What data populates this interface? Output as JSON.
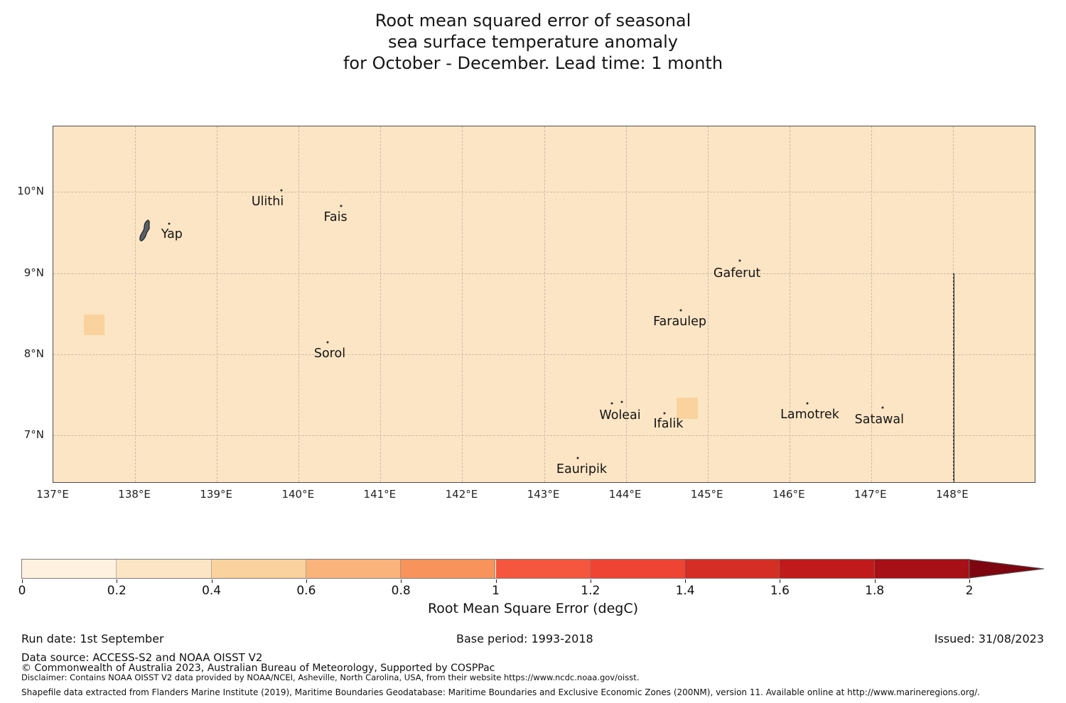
{
  "title": {
    "line1": "Root mean squared error of seasonal",
    "line2": "sea surface temperature anomaly",
    "line3": "for October - December. Lead time: 1 month"
  },
  "footer": {
    "run_date": "Run date: 1st September",
    "base_period": "Base period: 1993-2018",
    "issued": "Issued: 31/08/2023",
    "data_source": "Data source: ACCESS-S2 and NOAA OISST V2",
    "copyright": "© Commonwealth of Australia 2023, Australian Bureau of Meteorology, Supported by COSPPac",
    "disclaimer": "Disclaimer: Contains NOAA OISST V2 data provided by NOAA/NCEI, Asheville, North Carolina, USA, from their website https://www.ncdc.noaa.gov/oisst.",
    "shapefile": "Shapefile data extracted from Flanders Marine Institute (2019), Maritime Boundaries Geodatabase: Maritime Boundaries and Exclusive Economic Zones (200NM), version 11. Available online at http://www.marineregions.org/."
  },
  "chart_data": {
    "type": "heatmap",
    "title": "Root mean squared error of seasonal sea surface temperature anomaly for October - December. Lead time: 1 month",
    "projection": "lon/lat map (Yap State, Federated States of Micronesia)",
    "extent": {
      "lon_min": 137.0,
      "lon_max": 149.0,
      "lat_min": 6.42,
      "lat_max": 10.81
    },
    "grid": {
      "lon_lines": [
        138,
        139,
        140,
        141,
        142,
        143,
        144,
        145,
        146,
        147,
        148
      ],
      "lat_lines": [
        7,
        8,
        9,
        10
      ]
    },
    "lon_ticks": [
      {
        "value": 137,
        "label": "137°E"
      },
      {
        "value": 138,
        "label": "138°E"
      },
      {
        "value": 139,
        "label": "139°E"
      },
      {
        "value": 140,
        "label": "140°E"
      },
      {
        "value": 141,
        "label": "141°E"
      },
      {
        "value": 142,
        "label": "142°E"
      },
      {
        "value": 143,
        "label": "143°E"
      },
      {
        "value": 144,
        "label": "144°E"
      },
      {
        "value": 145,
        "label": "145°E"
      },
      {
        "value": 146,
        "label": "146°E"
      },
      {
        "value": 147,
        "label": "147°E"
      },
      {
        "value": 148,
        "label": "148°E"
      }
    ],
    "lat_ticks": [
      {
        "value": 7,
        "label": "7°N"
      },
      {
        "value": 8,
        "label": "8°N"
      },
      {
        "value": 9,
        "label": "9°N"
      },
      {
        "value": 10,
        "label": "10°N"
      }
    ],
    "background_rmse_range": "0.2-0.4",
    "background_color": "#FCE5C4",
    "cells": [
      {
        "lon": 137.5,
        "lat": 8.36,
        "size_deg": 0.25,
        "rmse_range": "0.4-0.6",
        "color": "#FAD29D"
      },
      {
        "lon": 144.75,
        "lat": 7.33,
        "size_deg": 0.26,
        "rmse_range": "0.4-0.6",
        "color": "#FAD29D"
      }
    ],
    "eez_boundary": {
      "lon": 148.01,
      "lat_from": 9.0,
      "lat_to": 6.42,
      "color": "#2b2b2b"
    },
    "islands": [
      {
        "name": "Ulithi",
        "lon": 139.62,
        "lat": 9.88,
        "dots": [
          {
            "lon": 139.79,
            "lat": 10.02
          }
        ]
      },
      {
        "name": "Fais",
        "lon": 140.45,
        "lat": 9.69,
        "dots": [
          {
            "lon": 140.52,
            "lat": 9.83
          }
        ]
      },
      {
        "name": "Yap",
        "lon": 138.45,
        "lat": 9.48,
        "dots": [
          {
            "lon": 138.42,
            "lat": 9.61
          }
        ],
        "has_polygon": true
      },
      {
        "name": "Gaferut",
        "lon": 145.36,
        "lat": 9.0,
        "dots": [
          {
            "lon": 145.39,
            "lat": 9.15
          }
        ]
      },
      {
        "name": "Faraulep",
        "lon": 144.66,
        "lat": 8.4,
        "dots": [
          {
            "lon": 144.67,
            "lat": 8.54
          }
        ]
      },
      {
        "name": "Sorol",
        "lon": 140.38,
        "lat": 8.01,
        "dots": [
          {
            "lon": 140.35,
            "lat": 8.15
          }
        ]
      },
      {
        "name": "Woleai",
        "lon": 143.93,
        "lat": 7.24,
        "dots": [
          {
            "lon": 143.83,
            "lat": 7.39
          },
          {
            "lon": 143.95,
            "lat": 7.41
          }
        ]
      },
      {
        "name": "Ifalik",
        "lon": 144.52,
        "lat": 7.14,
        "dots": [
          {
            "lon": 144.47,
            "lat": 7.27
          }
        ]
      },
      {
        "name": "Lamotrek",
        "lon": 146.25,
        "lat": 7.25,
        "dots": [
          {
            "lon": 146.22,
            "lat": 7.39
          }
        ]
      },
      {
        "name": "Satawal",
        "lon": 147.1,
        "lat": 7.19,
        "dots": [
          {
            "lon": 147.14,
            "lat": 7.34
          }
        ]
      },
      {
        "name": "Eauripik",
        "lon": 143.46,
        "lat": 6.58,
        "dots": [
          {
            "lon": 143.41,
            "lat": 6.72
          }
        ]
      }
    ],
    "colorbar": {
      "label": "Root Mean Square Error (degC)",
      "vmin": 0,
      "vmax": 2,
      "ticks": [
        {
          "value": 0,
          "label": "0"
        },
        {
          "value": 0.2,
          "label": "0.2"
        },
        {
          "value": 0.4,
          "label": "0.4"
        },
        {
          "value": 0.6,
          "label": "0.6"
        },
        {
          "value": 0.8,
          "label": "0.8"
        },
        {
          "value": 1,
          "label": "1"
        },
        {
          "value": 1.2,
          "label": "1.2"
        },
        {
          "value": 1.4,
          "label": "1.4"
        },
        {
          "value": 1.6,
          "label": "1.6"
        },
        {
          "value": 1.8,
          "label": "1.8"
        },
        {
          "value": 2,
          "label": "2"
        }
      ],
      "segments": [
        {
          "range": "0.0-0.2",
          "color": "#FEF1DF"
        },
        {
          "range": "0.2-0.4",
          "color": "#FCE5C4"
        },
        {
          "range": "0.4-0.6",
          "color": "#FAD29D"
        },
        {
          "range": "0.6-0.8",
          "color": "#FAB37B"
        },
        {
          "range": "0.8-1.0",
          "color": "#F7935B"
        },
        {
          "range": "1.0-1.2",
          "color": "#F4563E"
        },
        {
          "range": "1.2-1.4",
          "color": "#EF4433"
        },
        {
          "range": "1.4-1.6",
          "color": "#D52E24"
        },
        {
          "range": "1.6-1.8",
          "color": "#C01A1C"
        },
        {
          "range": "1.8-2.0",
          "color": "#A61016"
        }
      ],
      "over_color": "#7D0610",
      "legend_position": "bottom horizontal with over-range arrow"
    }
  }
}
